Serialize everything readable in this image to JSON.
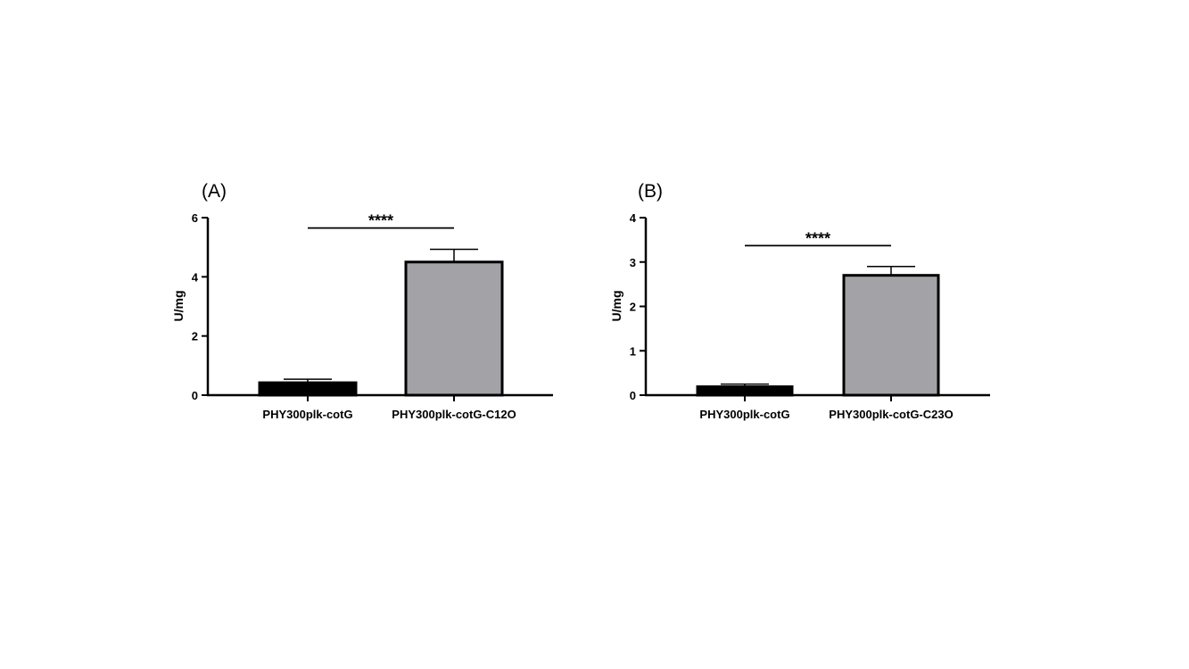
{
  "chart_data": [
    {
      "type": "bar",
      "panel_label": "(A)",
      "categories": [
        "PHY300plk-cotG",
        "PHY300plk-cotG-C12O"
      ],
      "values": [
        0.42,
        4.5
      ],
      "errors": [
        0.12,
        0.43
      ],
      "bar_colors": [
        "#000000",
        "#a3a2a7"
      ],
      "ylabel": "U/mg",
      "xlabel": "",
      "ylim": [
        0,
        6
      ],
      "yticks": [
        "0",
        "2",
        "4",
        "6"
      ],
      "ytick_values": [
        0,
        2,
        4,
        6
      ],
      "significance": {
        "label": "****",
        "between": [
          0,
          1
        ],
        "level": 5.65
      },
      "grid": false
    },
    {
      "type": "bar",
      "panel_label": "(B)",
      "categories": [
        "PHY300plk-cotG",
        "PHY300plk-cotG-C23O"
      ],
      "values": [
        0.19,
        2.7
      ],
      "errors": [
        0.06,
        0.2
      ],
      "bar_colors": [
        "#000000",
        "#a3a2a7"
      ],
      "ylabel": "U/mg",
      "xlabel": "",
      "ylim": [
        0,
        4
      ],
      "yticks": [
        "0",
        "1",
        "2",
        "3",
        "4"
      ],
      "ytick_values": [
        0,
        1,
        2,
        3,
        4
      ],
      "significance": {
        "label": "****",
        "between": [
          0,
          1
        ],
        "level": 3.37
      },
      "grid": false
    }
  ]
}
